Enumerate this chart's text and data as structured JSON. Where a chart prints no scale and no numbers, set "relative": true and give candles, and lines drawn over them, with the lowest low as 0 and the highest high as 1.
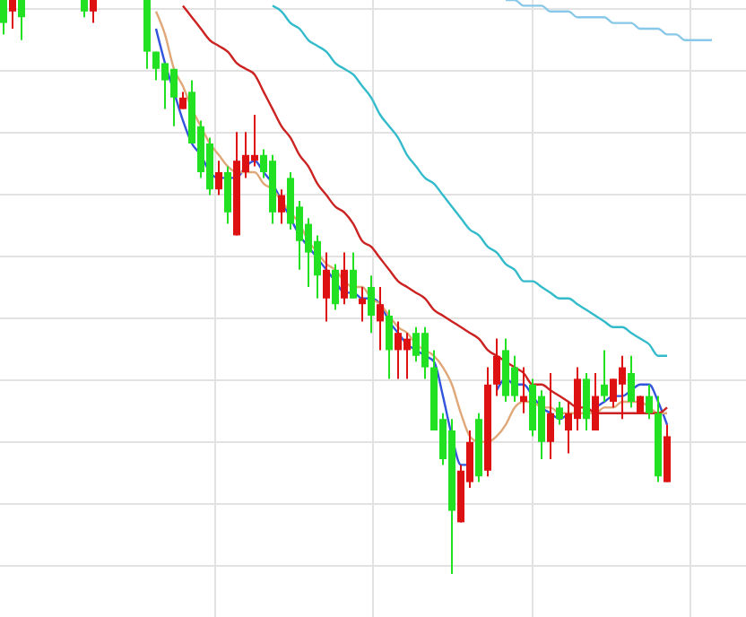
{
  "chart_data": {
    "type": "candlestick",
    "relative": true,
    "grid": true,
    "categories": [
      null,
      null,
      null,
      null,
      null,
      null,
      null,
      null,
      null,
      null,
      null,
      null,
      null,
      null,
      null,
      null,
      null,
      null,
      null,
      null,
      null,
      null,
      null,
      null,
      null,
      null,
      null,
      null,
      null,
      null,
      null,
      null,
      null,
      null,
      null,
      null,
      null,
      null,
      null,
      null,
      null,
      null,
      null,
      null,
      null,
      null,
      null,
      null,
      null,
      null,
      null,
      null,
      null,
      null,
      null,
      null,
      null,
      null,
      null,
      null,
      null,
      null,
      null,
      null,
      null,
      null,
      null,
      null,
      null,
      null,
      null,
      null,
      null,
      null,
      null,
      null,
      null,
      null,
      null,
      null
    ],
    "ohlc": [
      [
        1,
        1,
        0.94,
        0.96
      ],
      [
        0.98,
        1,
        0.95,
        1
      ],
      [
        1,
        1,
        0.93,
        0.97
      ],
      null,
      null,
      null,
      null,
      null,
      null,
      [
        1,
        1,
        0.97,
        0.98
      ],
      [
        0.98,
        1,
        0.96,
        1
      ],
      null,
      null,
      null,
      null,
      null,
      [
        1,
        1,
        0.88,
        0.91
      ],
      [
        0.91,
        0.91,
        0.86,
        0.88
      ],
      [
        0.89,
        0.89,
        0.81,
        0.86
      ],
      [
        0.88,
        0.88,
        0.78,
        0.83
      ],
      [
        0.81,
        0.84,
        0.81,
        0.83
      ],
      [
        0.84,
        0.86,
        0.75,
        0.75
      ],
      [
        0.78,
        0.79,
        0.69,
        0.7
      ],
      [
        0.75,
        0.76,
        0.66,
        0.67
      ],
      [
        0.67,
        0.72,
        0.66,
        0.7
      ],
      [
        0.7,
        0.71,
        0.61,
        0.63
      ],
      [
        0.59,
        0.77,
        0.59,
        0.72
      ],
      [
        0.7,
        0.77,
        0.69,
        0.73
      ],
      [
        0.72,
        0.8,
        0.71,
        0.73
      ],
      [
        0.73,
        0.74,
        0.69,
        0.7
      ],
      [
        0.72,
        0.73,
        0.61,
        0.63
      ],
      [
        0.63,
        0.67,
        0.61,
        0.66
      ],
      [
        0.69,
        0.7,
        0.6,
        0.61
      ],
      [
        0.64,
        0.65,
        0.53,
        0.58
      ],
      [
        0.61,
        0.62,
        0.5,
        0.56
      ],
      [
        0.58,
        0.59,
        0.48,
        0.52
      ],
      [
        0.48,
        0.56,
        0.44,
        0.53
      ],
      [
        0.53,
        0.54,
        0.46,
        0.47
      ],
      [
        0.48,
        0.56,
        0.47,
        0.53
      ],
      [
        0.53,
        0.56,
        0.48,
        0.48
      ],
      [
        0.47,
        0.5,
        0.44,
        0.48
      ],
      [
        0.5,
        0.52,
        0.42,
        0.45
      ],
      [
        0.44,
        0.5,
        0.39,
        0.47
      ],
      [
        0.45,
        0.46,
        0.34,
        0.39
      ],
      [
        0.39,
        0.44,
        0.34,
        0.42
      ],
      [
        0.39,
        0.42,
        0.34,
        0.41
      ],
      [
        0.42,
        0.43,
        0.37,
        0.38
      ],
      [
        0.42,
        0.43,
        0.34,
        0.36
      ],
      [
        0.36,
        0.39,
        0.25,
        0.25
      ],
      [
        0.27,
        0.28,
        0.19,
        0.2
      ],
      [
        0.25,
        0.27,
        0,
        0.11
      ],
      [
        0.09,
        0.19,
        0.09,
        0.18
      ],
      [
        0.16,
        0.25,
        0.15,
        0.23
      ],
      [
        0.27,
        0.28,
        0.16,
        0.17
      ],
      [
        0.18,
        0.36,
        0.17,
        0.33
      ],
      [
        0.33,
        0.41,
        0.31,
        0.38
      ],
      [
        0.39,
        0.41,
        0.3,
        0.31
      ],
      [
        0.36,
        0.38,
        0.3,
        0.31
      ],
      [
        0.3,
        0.36,
        0.28,
        0.31
      ],
      [
        0.33,
        0.34,
        0.24,
        0.25
      ],
      [
        0.31,
        0.32,
        0.2,
        0.23
      ],
      [
        0.23,
        0.35,
        0.2,
        0.28
      ],
      [
        0.29,
        0.3,
        0.26,
        0.27
      ],
      [
        0.25,
        0.3,
        0.21,
        0.28
      ],
      [
        0.27,
        0.36,
        0.25,
        0.34
      ],
      [
        0.34,
        0.35,
        0.25,
        0.27
      ],
      [
        0.25,
        0.35,
        0.25,
        0.31
      ],
      [
        0.33,
        0.39,
        0.3,
        0.31
      ],
      [
        0.3,
        0.34,
        0.29,
        0.34
      ],
      [
        0.33,
        0.38,
        0.27,
        0.36
      ],
      [
        0.35,
        0.38,
        0.29,
        0.3
      ],
      [
        0.28,
        0.31,
        0.28,
        0.31
      ],
      [
        0.31,
        0.33,
        0.27,
        0.28
      ],
      [
        0.28,
        0.31,
        0.16,
        0.17
      ],
      [
        0.16,
        0.26,
        0.16,
        0.24
      ],
      null,
      null,
      null,
      null,
      null
    ],
    "series": [
      {
        "type": "line",
        "color": "#3355dd",
        "values": [
          null,
          null,
          null,
          null,
          null,
          null,
          null,
          null,
          null,
          null,
          null,
          null,
          null,
          null,
          null,
          null,
          null,
          0.95,
          0.89,
          0.84,
          0.79,
          0.75,
          0.73,
          0.7,
          0.69,
          0.69,
          0.69,
          0.71,
          0.72,
          0.7,
          0.68,
          0.65,
          0.62,
          0.59,
          0.57,
          0.55,
          0.53,
          0.51,
          0.49,
          0.49,
          0.48,
          0.48,
          0.47,
          0.44,
          0.42,
          0.4,
          0.39,
          0.38,
          0.37,
          0.31,
          0.24,
          0.19,
          0.19,
          null,
          null,
          0.32,
          0.34,
          0.33,
          0.33,
          0.31,
          0.29,
          0.28,
          0.27,
          0.28,
          null,
          null,
          0.29,
          0.3,
          0.31,
          0.31,
          0.32,
          0.33,
          0.33,
          0.3,
          0.26,
          null,
          null,
          null,
          null,
          null
        ]
      },
      {
        "type": "line",
        "color": "#e0a878",
        "values": [
          null,
          null,
          null,
          null,
          null,
          null,
          null,
          null,
          null,
          null,
          null,
          null,
          null,
          null,
          null,
          null,
          null,
          0.98,
          0.94,
          0.88,
          0.85,
          0.81,
          0.78,
          0.75,
          0.73,
          0.71,
          0.7,
          0.7,
          0.7,
          0.68,
          0.67,
          0.65,
          0.63,
          0.61,
          0.58,
          0.56,
          0.54,
          0.53,
          0.51,
          0.5,
          0.5,
          0.48,
          0.47,
          0.45,
          0.43,
          0.42,
          0.4,
          0.39,
          0.38,
          0.36,
          0.33,
          0.28,
          0.24,
          0.23,
          0.23,
          0.24,
          0.26,
          0.29,
          0.3,
          0.3,
          0.29,
          0.29,
          0.28,
          0.28,
          0.28,
          0.28,
          0.28,
          0.29,
          0.29,
          0.3,
          0.3,
          0.3,
          0.29,
          0.28,
          0.28,
          null,
          null,
          null,
          null,
          null
        ]
      },
      {
        "type": "line",
        "color": "#cc2222",
        "values": [
          null,
          null,
          null,
          null,
          null,
          null,
          null,
          null,
          null,
          null,
          null,
          null,
          null,
          null,
          null,
          null,
          null,
          null,
          null,
          null,
          0.99,
          0.97,
          0.95,
          0.93,
          0.92,
          0.91,
          0.89,
          0.88,
          0.87,
          0.84,
          0.81,
          0.78,
          0.76,
          0.73,
          0.71,
          0.68,
          0.66,
          0.64,
          0.63,
          0.61,
          0.58,
          0.57,
          0.55,
          0.53,
          0.51,
          0.5,
          0.49,
          0.48,
          0.46,
          0.45,
          0.44,
          0.43,
          0.42,
          0.41,
          0.39,
          0.38,
          0.37,
          0.36,
          0.35,
          0.33,
          0.33,
          0.32,
          0.31,
          0.3,
          0.29,
          0.29,
          0.28,
          0.28,
          0.28,
          0.28,
          0.28,
          0.28,
          0.28,
          0.28,
          0.29,
          null,
          null,
          null,
          null,
          null
        ]
      },
      {
        "type": "line",
        "color": "#33bbcc",
        "values": [
          null,
          null,
          null,
          null,
          null,
          null,
          null,
          null,
          null,
          null,
          null,
          null,
          null,
          null,
          null,
          null,
          null,
          null,
          null,
          null,
          null,
          null,
          null,
          null,
          null,
          null,
          null,
          null,
          null,
          null,
          0.99,
          0.98,
          0.96,
          0.95,
          0.93,
          0.92,
          0.91,
          0.89,
          0.88,
          0.87,
          0.85,
          0.83,
          0.8,
          0.78,
          0.76,
          0.73,
          0.71,
          0.69,
          0.68,
          0.66,
          0.64,
          0.62,
          0.6,
          0.59,
          0.57,
          0.56,
          0.54,
          0.53,
          0.51,
          0.51,
          0.5,
          0.49,
          0.48,
          0.48,
          0.47,
          0.46,
          0.45,
          0.44,
          0.43,
          0.43,
          0.42,
          0.41,
          0.4,
          0.38,
          0.38,
          null,
          null,
          null,
          null,
          null
        ]
      },
      {
        "type": "line",
        "color": "#88c8e8",
        "values": [
          null,
          null,
          null,
          null,
          null,
          null,
          null,
          null,
          null,
          null,
          null,
          null,
          null,
          null,
          null,
          null,
          null,
          null,
          null,
          null,
          null,
          null,
          null,
          null,
          null,
          null,
          null,
          null,
          null,
          null,
          null,
          null,
          null,
          null,
          null,
          null,
          null,
          null,
          null,
          null,
          null,
          null,
          null,
          null,
          null,
          null,
          null,
          null,
          null,
          null,
          null,
          null,
          null,
          null,
          null,
          null,
          1,
          1,
          0.99,
          0.99,
          0.99,
          0.98,
          0.98,
          0.98,
          0.97,
          0.97,
          0.97,
          0.97,
          0.96,
          0.96,
          0.96,
          0.95,
          0.95,
          0.95,
          0.94,
          0.94,
          0.93,
          0.93,
          0.93,
          0.93
        ]
      }
    ]
  }
}
